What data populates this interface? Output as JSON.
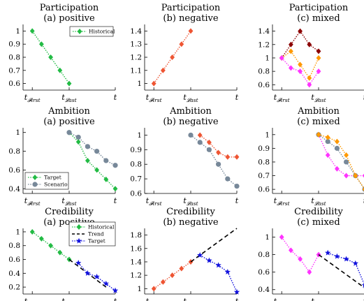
{
  "figure": {
    "x_tick_labels": {
      "first": "t",
      "first_sub": "𝓕irst",
      "last": "t",
      "last_sub": "𝓛ast",
      "end": "t"
    }
  },
  "chart_data": [
    {
      "type": "line",
      "row": 0,
      "col": 0,
      "title": "Participation",
      "subtitle": "(a) positive",
      "xlim": [
        0,
        10
      ],
      "ylim": [
        0.55,
        1.05
      ],
      "yticks": [
        0.6,
        0.7,
        0.8,
        0.9,
        1
      ],
      "x_ticks_at": [
        1,
        5,
        10
      ],
      "legend": {
        "placement": "top-right",
        "entries": [
          "Historical"
        ]
      },
      "series": [
        {
          "name": "Historical",
          "color": "#22bb44",
          "marker": "diamond",
          "x": [
            1,
            2,
            3,
            4,
            5
          ],
          "y": [
            1.0,
            0.9,
            0.8,
            0.7,
            0.6
          ]
        }
      ]
    },
    {
      "type": "line",
      "row": 0,
      "col": 1,
      "title": "Participation",
      "subtitle": "(b) negative",
      "xlim": [
        0,
        10
      ],
      "ylim": [
        0.95,
        1.45
      ],
      "yticks": [
        1,
        1.1,
        1.2,
        1.3,
        1.4
      ],
      "x_ticks_at": [
        1,
        5,
        10
      ],
      "series": [
        {
          "color": "#ee5533",
          "marker": "diamond",
          "x": [
            1,
            2,
            3,
            4,
            5
          ],
          "y": [
            1.0,
            1.1,
            1.2,
            1.3,
            1.4
          ]
        }
      ]
    },
    {
      "type": "line",
      "row": 0,
      "col": 2,
      "title": "Participation",
      "subtitle": "(c) mixed",
      "xlim": [
        0,
        10
      ],
      "ylim": [
        0.52,
        1.5
      ],
      "yticks": [
        0.6,
        0.8,
        1,
        1.2,
        1.4
      ],
      "x_ticks_at": [
        1,
        5,
        10
      ],
      "series": [
        {
          "color": "#8b0000",
          "marker": "diamond",
          "x": [
            1,
            2,
            3,
            4,
            5
          ],
          "y": [
            1.0,
            1.2,
            1.4,
            1.2,
            1.1
          ]
        },
        {
          "color": "#ff9900",
          "marker": "diamond",
          "x": [
            1,
            2,
            3,
            4,
            5
          ],
          "y": [
            1.0,
            1.1,
            0.9,
            0.7,
            1.0
          ]
        },
        {
          "color": "#ff33ff",
          "marker": "diamond",
          "x": [
            1,
            2,
            3,
            4,
            5
          ],
          "y": [
            1.0,
            0.85,
            0.8,
            0.6,
            0.8
          ]
        }
      ]
    },
    {
      "type": "line",
      "row": 1,
      "col": 0,
      "title": "Ambition",
      "subtitle": "(a) positive",
      "xlim": [
        0,
        10
      ],
      "ylim": [
        0.35,
        1.05
      ],
      "yticks": [
        0.4,
        0.6,
        0.8,
        1
      ],
      "x_ticks_at": [
        1,
        5,
        10
      ],
      "legend": {
        "placement": "bottom-left",
        "entries": [
          "Target",
          "Scenario"
        ]
      },
      "series": [
        {
          "name": "Target",
          "color": "#22bb44",
          "marker": "diamond",
          "x": [
            5,
            6,
            7,
            8,
            9,
            10
          ],
          "y": [
            1.0,
            0.9,
            0.7,
            0.6,
            0.5,
            0.4
          ]
        },
        {
          "name": "Scenario",
          "color": "#778899",
          "marker": "circle",
          "x": [
            5,
            6,
            7,
            8,
            9,
            10
          ],
          "y": [
            1.0,
            0.95,
            0.85,
            0.8,
            0.7,
            0.65
          ]
        }
      ]
    },
    {
      "type": "line",
      "row": 1,
      "col": 1,
      "title": "Ambition",
      "subtitle": "(b) negative",
      "xlim": [
        0,
        10
      ],
      "ylim": [
        0.6,
        1.05
      ],
      "yticks": [
        0.6,
        0.7,
        0.8,
        0.9,
        1
      ],
      "x_ticks_at": [
        1,
        5,
        10
      ],
      "series": [
        {
          "color": "#ee5533",
          "marker": "diamond",
          "x": [
            6,
            7,
            8,
            9,
            10
          ],
          "y": [
            1.0,
            0.95,
            0.88,
            0.85,
            0.85
          ]
        },
        {
          "color": "#778899",
          "marker": "circle",
          "x": [
            5,
            6,
            7,
            8,
            9,
            10
          ],
          "y": [
            1.0,
            0.95,
            0.9,
            0.8,
            0.7,
            0.65
          ]
        }
      ]
    },
    {
      "type": "line",
      "row": 1,
      "col": 2,
      "title": "Ambition",
      "subtitle": "(c) mixed",
      "xlim": [
        0,
        10
      ],
      "ylim": [
        0.57,
        1.05
      ],
      "yticks": [
        0.6,
        0.7,
        0.8,
        0.9,
        1
      ],
      "x_ticks_at": [
        1,
        5,
        10
      ],
      "series": [
        {
          "color": "#ff33ff",
          "marker": "diamond",
          "x": [
            5,
            6,
            7,
            8,
            9,
            10
          ],
          "y": [
            1.0,
            0.85,
            0.75,
            0.7,
            0.7,
            0.7
          ]
        },
        {
          "color": "#778899",
          "marker": "circle",
          "x": [
            5,
            6,
            7,
            8,
            9,
            10
          ],
          "y": [
            1.0,
            0.95,
            0.9,
            0.8,
            0.7,
            0.6
          ]
        },
        {
          "color": "#ff9900",
          "marker": "diamond",
          "x": [
            5,
            6,
            7,
            8,
            9,
            10
          ],
          "y": [
            1.0,
            0.98,
            0.95,
            0.85,
            0.7,
            0.6
          ]
        }
      ]
    },
    {
      "type": "line",
      "row": 2,
      "col": 0,
      "title": "Credibility",
      "subtitle": "(a) positive",
      "xlim": [
        0,
        10
      ],
      "ylim": [
        0.1,
        1.05
      ],
      "yticks": [
        0.2,
        0.4,
        0.6,
        0.8,
        1
      ],
      "x_ticks_at": [
        1,
        5,
        10
      ],
      "legend": {
        "placement": "top-right",
        "entries": [
          "Historical",
          "Trend",
          "Target"
        ]
      },
      "series": [
        {
          "name": "Historical",
          "color": "#22bb44",
          "marker": "diamond",
          "x": [
            1,
            2,
            3,
            4,
            5
          ],
          "y": [
            1.0,
            0.9,
            0.8,
            0.7,
            0.6
          ]
        },
        {
          "name": "Trend",
          "color": "#000000",
          "style": "dashed",
          "x": [
            5,
            9
          ],
          "y": [
            0.6,
            0.2
          ]
        },
        {
          "name": "Target",
          "color": "#1111dd",
          "marker": "pentagram",
          "x": [
            6,
            7,
            8,
            9,
            10
          ],
          "y": [
            0.55,
            0.4,
            0.35,
            0.25,
            0.15
          ]
        }
      ]
    },
    {
      "type": "line",
      "row": 2,
      "col": 1,
      "title": "Credibility",
      "subtitle": "(b) negative",
      "xlim": [
        0,
        10
      ],
      "ylim": [
        0.92,
        1.9
      ],
      "yticks": [
        1,
        1.2,
        1.4,
        1.6,
        1.8
      ],
      "x_ticks_at": [
        1,
        5,
        10
      ],
      "series": [
        {
          "color": "#ee5533",
          "marker": "diamond",
          "x": [
            1,
            2,
            3,
            4,
            5
          ],
          "y": [
            1.0,
            1.1,
            1.2,
            1.3,
            1.4
          ]
        },
        {
          "color": "#000000",
          "style": "dashed",
          "x": [
            5,
            10
          ],
          "y": [
            1.4,
            1.9
          ]
        },
        {
          "color": "#1111dd",
          "marker": "pentagram",
          "x": [
            6,
            7,
            8,
            9,
            10
          ],
          "y": [
            1.5,
            1.42,
            1.35,
            1.25,
            0.95
          ]
        }
      ]
    },
    {
      "type": "line",
      "row": 2,
      "col": 2,
      "title": "Credibility",
      "subtitle": "(c) mixed",
      "xlim": [
        0,
        10
      ],
      "ylim": [
        0.35,
        1.1
      ],
      "yticks": [
        0.4,
        0.6,
        0.8,
        1
      ],
      "x_ticks_at": [
        1,
        5,
        10
      ],
      "series": [
        {
          "color": "#ff33ff",
          "marker": "diamond",
          "x": [
            1,
            2,
            3,
            4,
            5
          ],
          "y": [
            1.0,
            0.85,
            0.75,
            0.6,
            0.8
          ]
        },
        {
          "color": "#000000",
          "style": "dashed",
          "x": [
            5,
            10
          ],
          "y": [
            0.8,
            0.42
          ]
        },
        {
          "color": "#1111dd",
          "marker": "pentagram",
          "x": [
            6,
            7,
            8,
            9,
            10
          ],
          "y": [
            0.82,
            0.78,
            0.75,
            0.7,
            0.45
          ]
        }
      ]
    }
  ]
}
